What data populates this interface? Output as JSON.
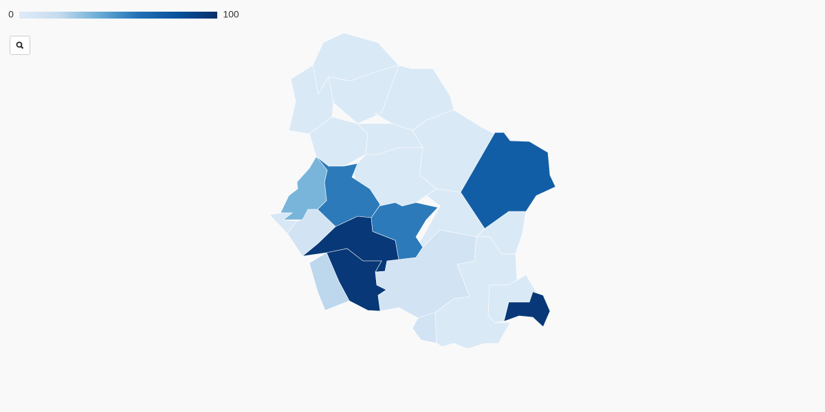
{
  "chart_data": {
    "type": "choropleth",
    "colorbar_ticks": [
      0,
      100
    ],
    "colorscale": [
      [
        0,
        "#deebf7"
      ],
      [
        0.2,
        "#c6dbef"
      ],
      [
        0.4,
        "#6baed6"
      ],
      [
        0.6,
        "#2171b5"
      ],
      [
        0.8,
        "#08519c"
      ],
      [
        1,
        "#08306b"
      ]
    ],
    "zlim": [
      0,
      100
    ],
    "values": [
      3,
      3,
      3,
      3,
      3,
      3,
      3,
      3,
      72,
      3,
      3,
      57,
      37,
      5,
      10,
      95,
      95,
      22,
      57,
      10,
      10,
      3,
      3,
      95
    ]
  }
}
